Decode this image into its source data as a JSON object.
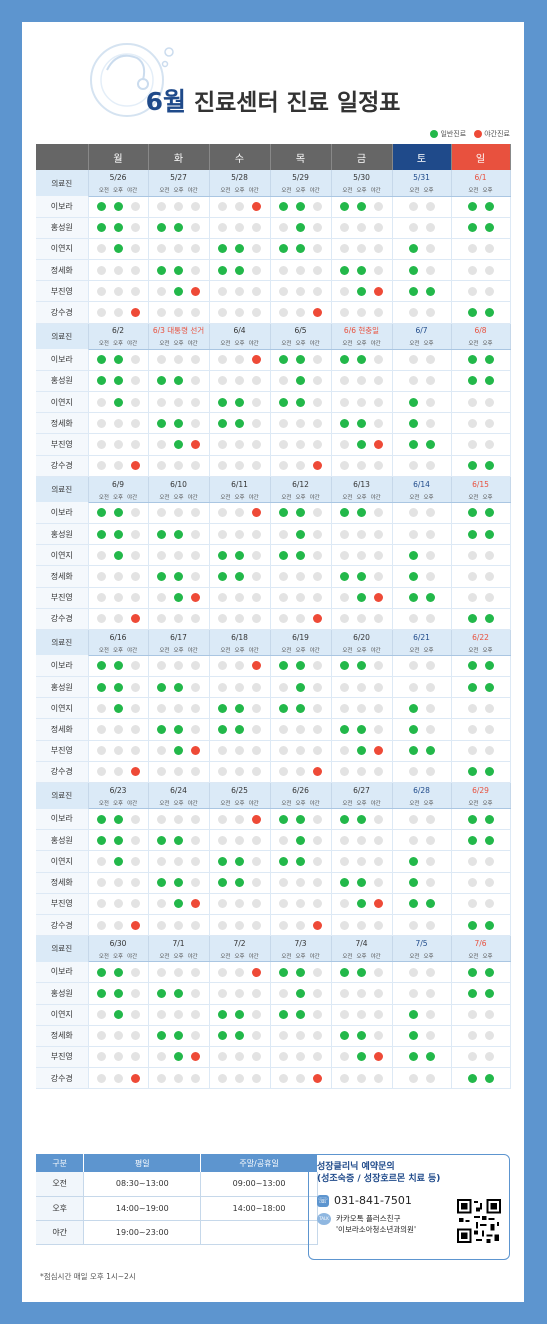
{
  "title": {
    "month": "6월",
    "rest": " 진료센터 진료 일정표"
  },
  "legend": {
    "normal": "일반진료",
    "night": "야간진료",
    "normal_color": "#23b84a",
    "night_color": "#ee4a37"
  },
  "days": [
    "월",
    "화",
    "수",
    "목",
    "금",
    "토",
    "일"
  ],
  "doctor_col_label": "의료진",
  "subs3": [
    "오전",
    "오후",
    "야간"
  ],
  "subs2": [
    "오전",
    "오후"
  ],
  "weeks": [
    {
      "dates": [
        "5/26",
        "5/27",
        "5/28",
        "5/29",
        "5/30",
        "5/31",
        "6/1"
      ]
    },
    {
      "dates": [
        "6/2",
        "6/3 대통령 선거",
        "6/4",
        "6/5",
        "6/6 현충일",
        "6/7",
        "6/8"
      ]
    },
    {
      "dates": [
        "6/9",
        "6/10",
        "6/11",
        "6/12",
        "6/13",
        "6/14",
        "6/15"
      ]
    },
    {
      "dates": [
        "6/16",
        "6/17",
        "6/18",
        "6/19",
        "6/20",
        "6/21",
        "6/22"
      ]
    },
    {
      "dates": [
        "6/23",
        "6/24",
        "6/25",
        "6/26",
        "6/27",
        "6/28",
        "6/29"
      ]
    },
    {
      "dates": [
        "6/30",
        "7/1",
        "7/2",
        "7/3",
        "7/4",
        "7/5",
        "7/6"
      ]
    }
  ],
  "red_dates": [
    "6/3 대통령 선거",
    "6/6 현충일"
  ],
  "doctors": [
    {
      "name": "이보라",
      "s": [
        "GGO",
        "OOO",
        "OOR",
        "GGO",
        "GGO",
        "OO",
        "GG"
      ]
    },
    {
      "name": "홍성원",
      "s": [
        "GGO",
        "GGO",
        "OOO",
        "OGO",
        "OOO",
        "OO",
        "GG"
      ]
    },
    {
      "name": "이연지",
      "s": [
        "OGO",
        "OOO",
        "GGO",
        "GGO",
        "OOO",
        "GO",
        "OO"
      ]
    },
    {
      "name": "정세화",
      "s": [
        "OOO",
        "GGO",
        "GGO",
        "OOO",
        "GGO",
        "GO",
        "OO"
      ]
    },
    {
      "name": "부진영",
      "s": [
        "OOO",
        "OGR",
        "OOO",
        "OOO",
        "OGR",
        "GG",
        "OO"
      ]
    },
    {
      "name": "강수경",
      "s": [
        "OOR",
        "OOO",
        "OOO",
        "OOR",
        "OOO",
        "OO",
        "GG"
      ]
    }
  ],
  "hours": {
    "headers": [
      "구분",
      "평일",
      "주말/공휴일"
    ],
    "rows": [
      [
        "오전",
        "08:30~13:00",
        "09:00~13:00"
      ],
      [
        "오후",
        "14:00~19:00",
        "14:00~18:00"
      ],
      [
        "야간",
        "19:00~23:00",
        ""
      ]
    ]
  },
  "contact": {
    "title_line1": "성장클리닉 예약문의",
    "title_line2": "(성조숙증 / 성장호르몬 치료 등)",
    "phone": "031-841-7501",
    "talk_line1": "카카오톡 플러스친구",
    "talk_line2": "'이보라소아청소년과의원'",
    "talk_badge": "TALK"
  },
  "note": "*점심시간 매일 오후 1시~2시"
}
